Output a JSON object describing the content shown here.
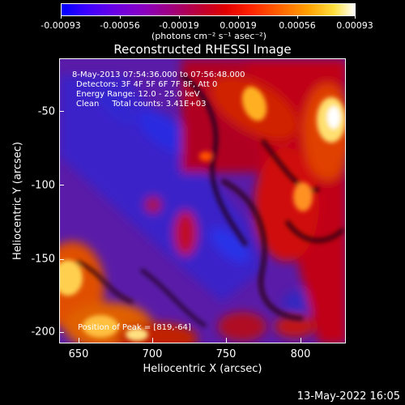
{
  "colorbar": {
    "tick_labels": [
      "-0.00093",
      "-0.00056",
      "-0.00019",
      "0.00019",
      "0.00056",
      "0.00093"
    ],
    "units": "(photons cm⁻² s⁻¹ asec⁻²)"
  },
  "title": "Reconstructed RHESSI Image",
  "annotations": {
    "time_range": "8-May-2013 07:54:36.000 to 07:56:48.000",
    "detectors": "Detectors: 3F 4F 5F 6F 7F 8F, Att 0",
    "energy": "Energy Range: 12.0 - 25.0 keV",
    "clean": "Clean     Total counts: 3.41E+03",
    "peak": "Position of Peak = [819,-64]"
  },
  "axes": {
    "x_label": "Heliocentric X (arcsec)",
    "y_label": "Heliocentric Y (arcsec)",
    "x_ticks": [
      "650",
      "700",
      "750",
      "800"
    ],
    "y_ticks": [
      "-50",
      "-100",
      "-150",
      "-200"
    ]
  },
  "datestamp": "13-May-2022 16:05"
}
